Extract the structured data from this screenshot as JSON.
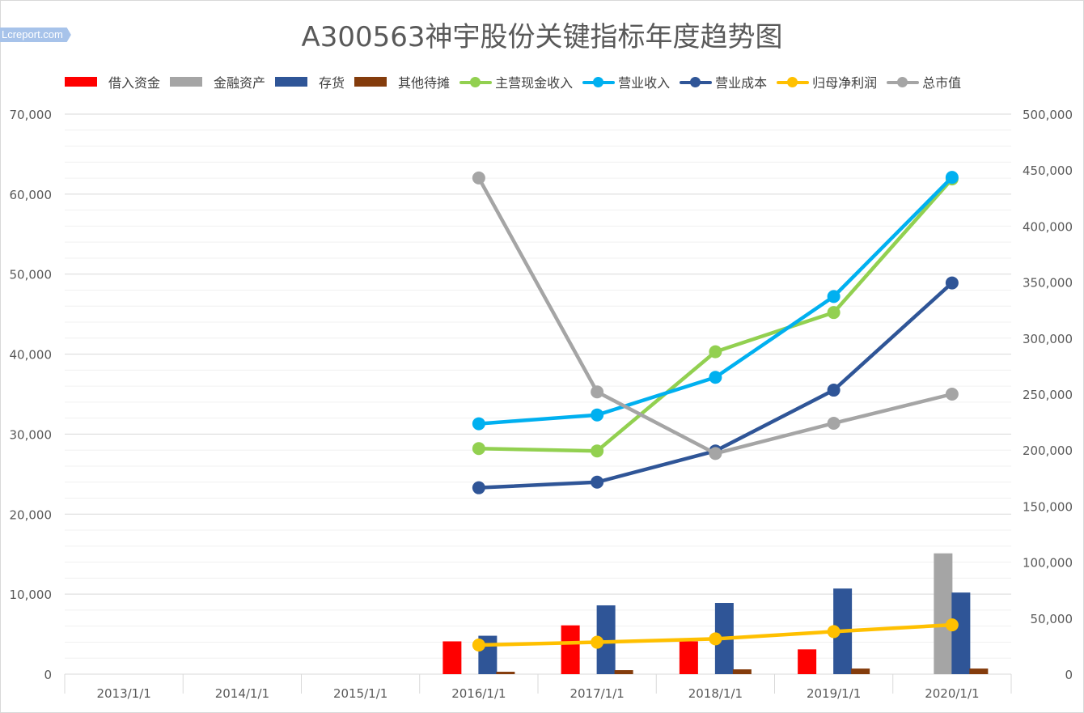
{
  "watermark": "Lcreport.com",
  "chart_data": {
    "type": "bar+line",
    "title": "A300563神宇股份关键指标年度趋势图",
    "categories": [
      "2013/1/1",
      "2014/1/1",
      "2015/1/1",
      "2016/1/1",
      "2017/1/1",
      "2018/1/1",
      "2019/1/1",
      "2020/1/1"
    ],
    "y_left": {
      "ylim": [
        0,
        70000
      ],
      "ticks": [
        "0",
        "10,000",
        "20,000",
        "30,000",
        "40,000",
        "50,000",
        "60,000",
        "70,000"
      ]
    },
    "y_right": {
      "ylim": [
        0,
        500000
      ],
      "ticks": [
        "0",
        "50,000",
        "100,000",
        "150,000",
        "200,000",
        "250,000",
        "300,000",
        "350,000",
        "400,000",
        "450,000",
        "500,000"
      ]
    },
    "grid": true,
    "legend_position": "top",
    "bar_series": [
      {
        "name": "借入资金",
        "color": "#ff0000",
        "values": [
          null,
          null,
          null,
          4100,
          6100,
          4100,
          3100,
          null
        ]
      },
      {
        "name": "金融资产",
        "color": "#a5a5a5",
        "values": [
          null,
          null,
          null,
          null,
          null,
          null,
          null,
          15100
        ]
      },
      {
        "name": "存货",
        "color": "#2f5597",
        "values": [
          null,
          null,
          null,
          4800,
          8600,
          8900,
          10700,
          10200
        ]
      },
      {
        "name": "其他待摊",
        "color": "#843c0c",
        "values": [
          null,
          null,
          null,
          300,
          500,
          600,
          700,
          700
        ]
      }
    ],
    "line_series": [
      {
        "name": "主营现金收入",
        "color": "#92d050",
        "axis": "left",
        "values": [
          null,
          null,
          null,
          28200,
          27900,
          40300,
          45200,
          61900
        ]
      },
      {
        "name": "营业收入",
        "color": "#00b0f0",
        "axis": "left",
        "values": [
          null,
          null,
          null,
          31300,
          32400,
          37100,
          47200,
          62100
        ]
      },
      {
        "name": "营业成本",
        "color": "#2f5597",
        "axis": "left",
        "values": [
          null,
          null,
          null,
          23300,
          24000,
          27900,
          35500,
          48900
        ]
      },
      {
        "name": "归母净利润",
        "color": "#ffc000",
        "axis": "right",
        "values": [
          null,
          null,
          null,
          26000,
          28500,
          31500,
          38000,
          44000
        ]
      },
      {
        "name": "总市值",
        "color": "#a5a5a5",
        "axis": "right",
        "values": [
          null,
          null,
          null,
          443000,
          252000,
          197000,
          224000,
          250000
        ]
      }
    ]
  }
}
